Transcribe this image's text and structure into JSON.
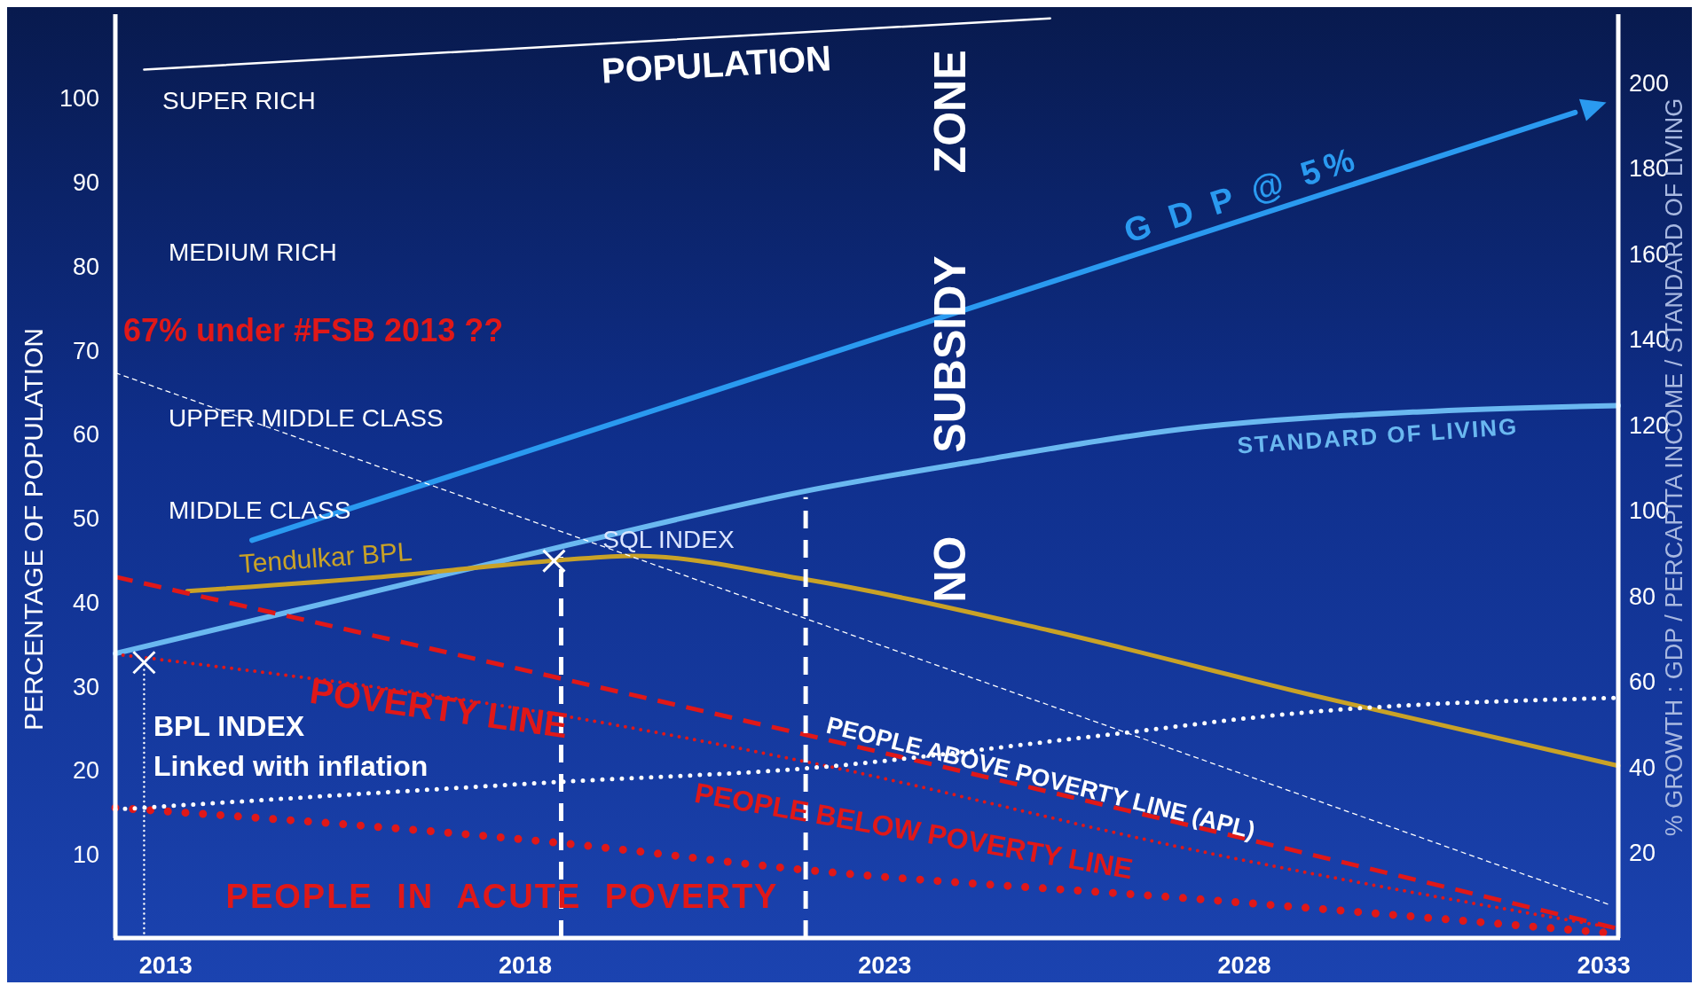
{
  "chart_data": {
    "type": "line",
    "ylabel": "PERCENTAGE OF POPULATION",
    "y2label": "% GROWTH : GDP / PERCAPITA INCOME / STANDARD OF LIVING",
    "xlim": [
      2012.3,
      2033.2
    ],
    "xticks": [
      2013,
      2018,
      2023,
      2028,
      2033
    ],
    "ylim": [
      0,
      110
    ],
    "yticks": [
      10,
      20,
      30,
      40,
      50,
      60,
      70,
      80,
      90,
      100
    ],
    "y2lim": [
      0,
      216
    ],
    "y2ticks": [
      20,
      40,
      60,
      80,
      100,
      120,
      140,
      160,
      180,
      200
    ],
    "grid": false,
    "legend": false,
    "series": [
      {
        "name": "POPULATION",
        "color": "#ffffff",
        "line_style": "solid",
        "x": [
          2012.7,
          2025.3
        ],
        "values": [
          103.4,
          109.5
        ]
      },
      {
        "name": "G D P @ 5%",
        "color": "#2a9af0",
        "line_style": "solid",
        "axis": "y2",
        "x": [
          2014.2,
          2032.6
        ],
        "values": [
          93,
          193
        ]
      },
      {
        "name": "STANDARD OF LIVING",
        "color": "#6ab8f0",
        "line_style": "solid",
        "axis": "y2",
        "x": [
          2012.3,
          2018.5,
          2021.9,
          2024.1,
          2027.4,
          2030.4,
          2033.2
        ],
        "values": [
          66.5,
          91.5,
          104.5,
          111,
          119.5,
          123,
          124.5
        ]
      },
      {
        "name": "Tendulkar BPL",
        "color": "#c9a227",
        "line_style": "solid",
        "x": [
          2013.3,
          2016,
          2018.5,
          2019.5,
          2021.9,
          2025.3,
          2028.9,
          2033.2
        ],
        "values": [
          41.3,
          43,
          45,
          45.5,
          42.7,
          36.6,
          29,
          20.5
        ]
      },
      {
        "name": "SQL INDEX",
        "color": "#ffffff",
        "line_style": "dashed",
        "x": [
          2012.3,
          2033.1
        ],
        "values": [
          67.3,
          3.9
        ]
      },
      {
        "color": "#e01818",
        "line_style": "dashed",
        "x": [
          2012.3,
          2018.5,
          2021.9,
          2033.2
        ],
        "values": [
          43,
          30.9,
          24.2,
          1.1
        ]
      },
      {
        "name": "POVERTY LINE",
        "color": "#e01818",
        "line_style": "dotted",
        "x": [
          2012.3,
          2018.5,
          2021.9,
          2027.4,
          2033.2
        ],
        "values": [
          33.8,
          26.5,
          21,
          10.3,
          1.1
        ]
      },
      {
        "color": "#e01818",
        "line_style": "dotted",
        "x": [
          2012.3,
          2018.5,
          2021.9,
          2027.4,
          2033.2
        ],
        "values": [
          15.5,
          11.3,
          8.1,
          4.6,
          0.5
        ]
      },
      {
        "color": "#ffffff",
        "line_style": "dotted",
        "x": [
          2012.3,
          2018.5,
          2021.9,
          2025.9,
          2028.9,
          2033.2
        ],
        "values": [
          15.3,
          18.6,
          20.2,
          24,
          26.9,
          28.6
        ]
      },
      {
        "color": "#ffffff",
        "line_style": "dashed",
        "x": [
          2018.5,
          2018.5
        ],
        "values": [
          0,
          45.4
        ]
      },
      {
        "color": "#ffffff",
        "line_style": "dashed",
        "x": [
          2021.9,
          2021.9
        ],
        "values": [
          0,
          52.5
        ]
      },
      {
        "color": "#ffffff",
        "line_style": "dotted",
        "x": [
          2012.7,
          2012.7
        ],
        "values": [
          0,
          32
        ]
      },
      {
        "type": "scatter",
        "color": "#ffffff",
        "marker": "cross",
        "x": [
          2012.7,
          2018.4
        ],
        "values": [
          32.8,
          44.9
        ]
      }
    ],
    "annotations": [
      "SUPER RICH",
      "MEDIUM RICH",
      "UPPER MIDDLE CLASS",
      "MIDDLE CLASS",
      "67% under #FSB 2013 ??",
      "NO SUBSIDY ZONE",
      "BPL INDEX",
      "Linked with inflation",
      "PEOPLE ABOVE POVERTY LINE (APL)",
      "PEOPLE BELOW POVERTY LINE",
      "PEOPLE IN ACUTE POVERTY"
    ]
  }
}
